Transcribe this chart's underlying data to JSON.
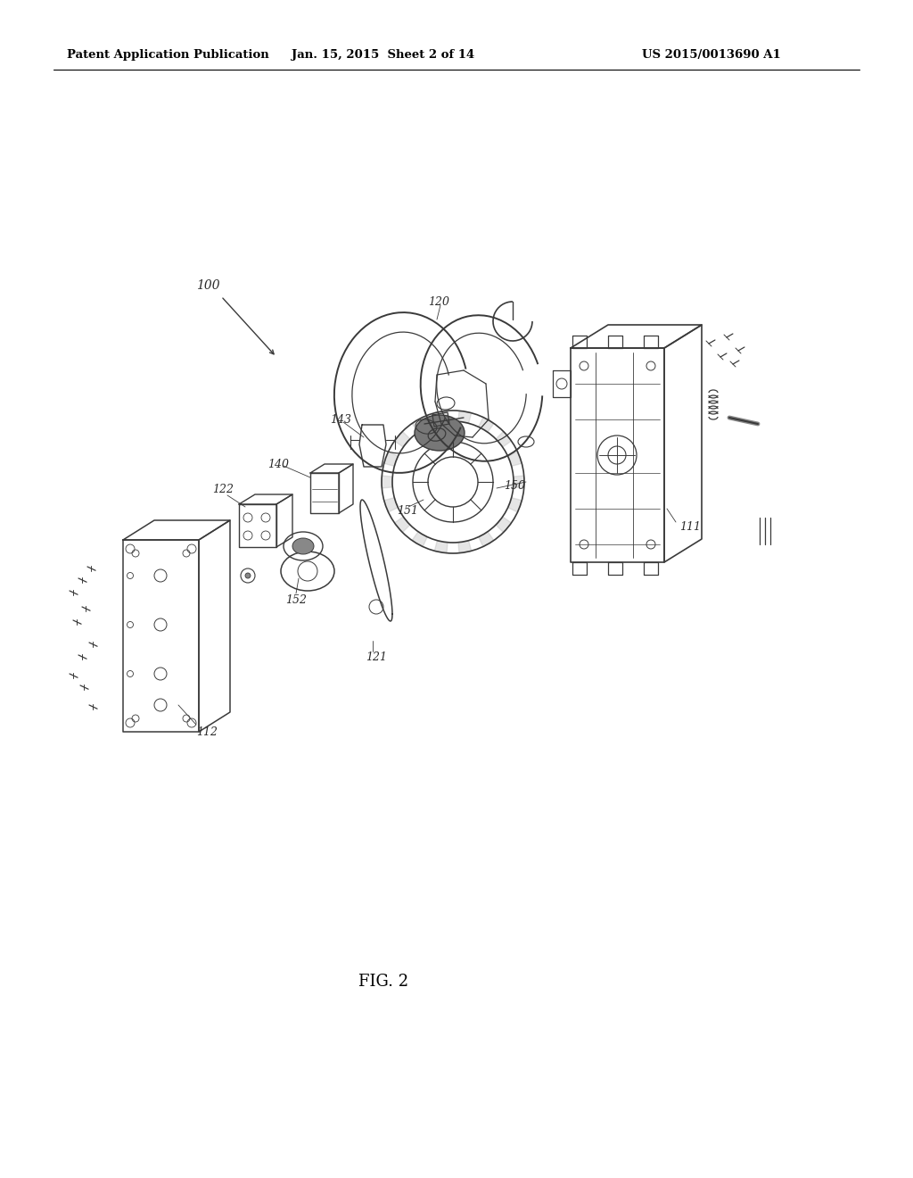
{
  "bg_color": "#ffffff",
  "header_left": "Patent Application Publication",
  "header_mid": "Jan. 15, 2015  Sheet 2 of 14",
  "header_right": "US 2015/0013690 A1",
  "figure_label": "FIG. 2",
  "lc": "#3a3a3a",
  "lw_main": 1.0,
  "figsize": [
    10.24,
    13.2
  ],
  "dpi": 100
}
